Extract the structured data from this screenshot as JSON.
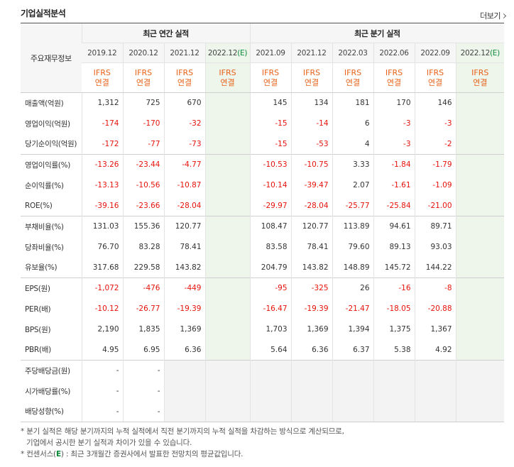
{
  "section": {
    "title": "기업실적분석",
    "more_label": "더보기"
  },
  "header": {
    "corner_label": "주요재무정보",
    "annual_group": "최근 연간 실적",
    "quarterly_group": "최근 분기 실적",
    "ifrs_top": "IFRS",
    "ifrs_bottom": "연결",
    "periods": [
      {
        "base": "2019.12",
        "suffix": "",
        "estimate": false
      },
      {
        "base": "2020.12",
        "suffix": "",
        "estimate": false
      },
      {
        "base": "2021.12",
        "suffix": "",
        "estimate": false
      },
      {
        "base": "2022.12",
        "suffix": "(E)",
        "estimate": true
      },
      {
        "base": "2021.09",
        "suffix": "",
        "estimate": false
      },
      {
        "base": "2021.12",
        "suffix": "",
        "estimate": false
      },
      {
        "base": "2022.03",
        "suffix": "",
        "estimate": false
      },
      {
        "base": "2022.06",
        "suffix": "",
        "estimate": false
      },
      {
        "base": "2022.09",
        "suffix": "",
        "estimate": false
      },
      {
        "base": "2022.12",
        "suffix": "(E)",
        "estimate": true
      }
    ]
  },
  "rows": [
    {
      "label": "매출액(억원)",
      "values": [
        "1,312",
        "725",
        "670",
        "",
        "145",
        "134",
        "181",
        "170",
        "146",
        ""
      ]
    },
    {
      "label": "영업이익(억원)",
      "values": [
        "-174",
        "-170",
        "-32",
        "",
        "-15",
        "-14",
        "6",
        "-3",
        "-3",
        ""
      ]
    },
    {
      "label": "당기순이익(억원)",
      "values": [
        "-172",
        "-77",
        "-73",
        "",
        "-15",
        "-53",
        "4",
        "-3",
        "-2",
        ""
      ]
    },
    {
      "label": "영업이익률(%)",
      "values": [
        "-13.26",
        "-23.44",
        "-4.77",
        "",
        "-10.53",
        "-10.75",
        "3.33",
        "-1.84",
        "-1.79",
        ""
      ]
    },
    {
      "label": "순이익률(%)",
      "values": [
        "-13.13",
        "-10.56",
        "-10.87",
        "",
        "-10.14",
        "-39.47",
        "2.07",
        "-1.61",
        "-1.09",
        ""
      ]
    },
    {
      "label": "ROE(%)",
      "values": [
        "-39.16",
        "-23.66",
        "-28.04",
        "",
        "-29.97",
        "-28.04",
        "-25.77",
        "-25.84",
        "-21.00",
        ""
      ]
    },
    {
      "label": "부채비율(%)",
      "values": [
        "131.03",
        "155.36",
        "120.77",
        "",
        "108.47",
        "120.77",
        "113.89",
        "94.61",
        "89.71",
        ""
      ]
    },
    {
      "label": "당좌비율(%)",
      "values": [
        "76.70",
        "83.28",
        "78.41",
        "",
        "83.58",
        "78.41",
        "79.60",
        "89.13",
        "93.03",
        ""
      ]
    },
    {
      "label": "유보율(%)",
      "values": [
        "317.68",
        "229.58",
        "143.82",
        "",
        "204.79",
        "143.82",
        "148.89",
        "145.72",
        "144.22",
        ""
      ]
    },
    {
      "label": "EPS(원)",
      "values": [
        "-1,072",
        "-476",
        "-449",
        "",
        "-95",
        "-325",
        "26",
        "-16",
        "-8",
        ""
      ]
    },
    {
      "label": "PER(배)",
      "values": [
        "-10.12",
        "-26.77",
        "-19.39",
        "",
        "-16.47",
        "-19.39",
        "-21.47",
        "-18.05",
        "-20.88",
        ""
      ]
    },
    {
      "label": "BPS(원)",
      "values": [
        "2,190",
        "1,835",
        "1,369",
        "",
        "1,703",
        "1,369",
        "1,394",
        "1,375",
        "1,367",
        ""
      ]
    },
    {
      "label": "PBR(배)",
      "values": [
        "4.95",
        "6.95",
        "6.36",
        "",
        "5.64",
        "6.36",
        "6.37",
        "5.38",
        "4.92",
        ""
      ]
    },
    {
      "label": "주당배당금(원)",
      "values": [
        "-",
        "-",
        "",
        "",
        "",
        "",
        "",
        "",
        "",
        ""
      ]
    },
    {
      "label": "시가배당률(%)",
      "values": [
        "-",
        "-",
        "",
        "",
        "",
        "",
        "",
        "",
        "",
        ""
      ]
    },
    {
      "label": "배당성향(%)",
      "values": [
        "-",
        "-",
        "",
        "",
        "",
        "",
        "",
        "",
        "",
        ""
      ]
    }
  ],
  "notes": [
    "* 분기 실적은 해당 분기까지의 누적 실적에서 직전 분기까지의 누적 실적을 차감하는 방식으로 계산되므로,",
    "기업에서 공시한 분기 실적과 차이가 있을 수 있습니다.",
    "* 컨센서스(E) : 최근 3개월간 증권사에서 발표한 전망치의 평균값입니다."
  ],
  "colors": {
    "negative": "#e8120b",
    "ifrs": "#e8621a",
    "estimate_bg": "#eef5ea",
    "estimate_mark": "#0a8a3a"
  }
}
